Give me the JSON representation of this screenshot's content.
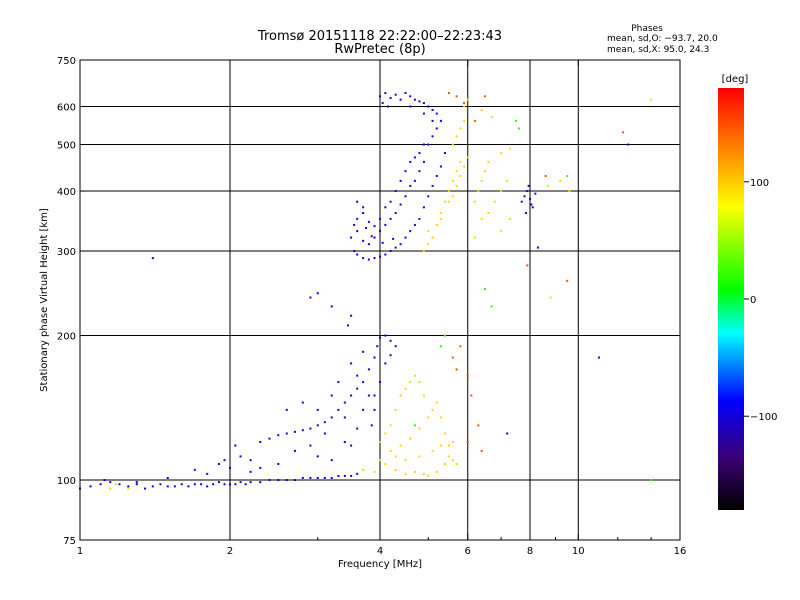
{
  "chart_data": {
    "type": "scatter",
    "title": "Tromsø 20151118 22:22:00–22:23:43",
    "subtitle": "RwPretec (8p)",
    "xlabel": "Frequency [MHz]",
    "ylabel": "Stationary phase Virtual Height [km]",
    "x_scale": "log",
    "y_scale": "log",
    "xlim": [
      1,
      16
    ],
    "ylim": [
      75,
      750
    ],
    "x_ticks": [
      1,
      2,
      4,
      6,
      8,
      10,
      16
    ],
    "x_tick_labels": [
      "1",
      "2",
      "4",
      "6",
      "8",
      "10",
      "16"
    ],
    "x_grid": [
      2,
      4,
      6,
      8,
      10
    ],
    "y_ticks": [
      75,
      100,
      200,
      300,
      400,
      500,
      600,
      750
    ],
    "y_tick_labels": [
      "75",
      "100",
      "200",
      "300",
      "400",
      "500",
      "600",
      "750"
    ],
    "y_grid": [
      100,
      200,
      300,
      400,
      500,
      600
    ],
    "grid": true,
    "legend": {
      "title": "Phases",
      "lines": [
        "mean, sd,O: −93.7, 20.0",
        "mean, sd,X:  95.0, 24.3"
      ],
      "placement": "top-right"
    },
    "colorbar": {
      "label": "[deg]",
      "min": -180,
      "max": 180,
      "ticks": [
        100,
        0,
        -100
      ],
      "tick_labels": [
        "100",
        "0",
        "−100"
      ]
    },
    "series": [
      {
        "mode": "O",
        "color_deg": -100,
        "points": [
          [
            1.0,
            96
          ],
          [
            1.05,
            97
          ],
          [
            1.1,
            98
          ],
          [
            1.12,
            100
          ],
          [
            1.15,
            99
          ],
          [
            1.2,
            98
          ],
          [
            1.25,
            97
          ],
          [
            1.3,
            98
          ],
          [
            1.35,
            96
          ],
          [
            1.4,
            97
          ],
          [
            1.45,
            98
          ],
          [
            1.5,
            97
          ],
          [
            1.55,
            97
          ],
          [
            1.6,
            98
          ],
          [
            1.65,
            97
          ],
          [
            1.7,
            98
          ],
          [
            1.75,
            98
          ],
          [
            1.8,
            97
          ],
          [
            1.85,
            98
          ],
          [
            1.9,
            99
          ],
          [
            1.95,
            98
          ],
          [
            2.0,
            98
          ],
          [
            2.05,
            98
          ],
          [
            2.1,
            99
          ],
          [
            2.15,
            98
          ],
          [
            2.2,
            99
          ],
          [
            2.3,
            99
          ],
          [
            2.4,
            100
          ],
          [
            2.5,
            100
          ],
          [
            2.6,
            100
          ],
          [
            2.7,
            100
          ],
          [
            2.8,
            101
          ],
          [
            2.9,
            101
          ],
          [
            3.0,
            101
          ],
          [
            3.1,
            101
          ],
          [
            3.2,
            101
          ],
          [
            3.3,
            102
          ],
          [
            3.4,
            102
          ],
          [
            3.5,
            102
          ],
          [
            3.6,
            103
          ],
          [
            1.3,
            99
          ],
          [
            1.5,
            101
          ],
          [
            1.7,
            105
          ],
          [
            1.8,
            103
          ],
          [
            1.9,
            108
          ],
          [
            1.95,
            110
          ],
          [
            2.0,
            106
          ],
          [
            2.1,
            112
          ],
          [
            2.05,
            118
          ],
          [
            2.2,
            110
          ],
          [
            2.3,
            120
          ],
          [
            2.4,
            122
          ],
          [
            2.5,
            124
          ],
          [
            2.6,
            125
          ],
          [
            2.7,
            126
          ],
          [
            2.8,
            127
          ],
          [
            2.9,
            128
          ],
          [
            3.0,
            130
          ],
          [
            3.1,
            132
          ],
          [
            3.2,
            135
          ],
          [
            3.3,
            140
          ],
          [
            3.4,
            145
          ],
          [
            3.5,
            150
          ],
          [
            3.6,
            155
          ],
          [
            3.7,
            160
          ],
          [
            3.8,
            170
          ],
          [
            3.9,
            180
          ],
          [
            3.95,
            190
          ],
          [
            4.0,
            198
          ],
          [
            4.1,
            200
          ],
          [
            4.2,
            195
          ],
          [
            4.3,
            190
          ],
          [
            3.5,
            175
          ],
          [
            3.6,
            165
          ],
          [
            3.7,
            185
          ],
          [
            3.8,
            150
          ],
          [
            3.4,
            135
          ],
          [
            3.3,
            160
          ],
          [
            3.2,
            150
          ],
          [
            3.0,
            140
          ],
          [
            2.8,
            145
          ],
          [
            2.6,
            140
          ],
          [
            2.9,
            118
          ],
          [
            3.1,
            125
          ],
          [
            3.4,
            120
          ],
          [
            3.6,
            128
          ],
          [
            3.9,
            140
          ],
          [
            4.0,
            160
          ],
          [
            4.1,
            175
          ],
          [
            4.2,
            182
          ],
          [
            3.9,
            150
          ],
          [
            3.7,
            140
          ],
          [
            3.85,
            130
          ],
          [
            3.5,
            118
          ],
          [
            3.2,
            110
          ],
          [
            3.0,
            112
          ],
          [
            2.7,
            115
          ],
          [
            2.5,
            108
          ],
          [
            2.3,
            106
          ],
          [
            2.2,
            104
          ],
          [
            3.55,
            300
          ],
          [
            3.6,
            295
          ],
          [
            3.7,
            290
          ],
          [
            3.8,
            288
          ],
          [
            3.9,
            290
          ],
          [
            4.0,
            292
          ],
          [
            4.1,
            295
          ],
          [
            4.2,
            300
          ],
          [
            4.3,
            305
          ],
          [
            4.4,
            310
          ],
          [
            4.5,
            320
          ],
          [
            4.6,
            330
          ],
          [
            4.7,
            340
          ],
          [
            4.8,
            350
          ],
          [
            4.9,
            370
          ],
          [
            5.0,
            390
          ],
          [
            5.1,
            410
          ],
          [
            5.2,
            430
          ],
          [
            5.3,
            450
          ],
          [
            5.4,
            480
          ],
          [
            3.5,
            320
          ],
          [
            3.55,
            340
          ],
          [
            3.6,
            330
          ],
          [
            3.7,
            315
          ],
          [
            3.8,
            310
          ],
          [
            3.9,
            320
          ],
          [
            4.0,
            330
          ],
          [
            4.1,
            340
          ],
          [
            4.2,
            350
          ],
          [
            4.3,
            360
          ],
          [
            4.4,
            375
          ],
          [
            4.5,
            390
          ],
          [
            4.6,
            410
          ],
          [
            4.7,
            420
          ],
          [
            4.8,
            440
          ],
          [
            4.9,
            460
          ],
          [
            5.0,
            500
          ],
          [
            5.1,
            520
          ],
          [
            5.2,
            540
          ],
          [
            5.3,
            560
          ],
          [
            3.6,
            350
          ],
          [
            3.7,
            360
          ],
          [
            3.8,
            345
          ],
          [
            3.9,
            338
          ],
          [
            4.0,
            350
          ],
          [
            4.1,
            370
          ],
          [
            4.2,
            380
          ],
          [
            4.3,
            400
          ],
          [
            4.4,
            420
          ],
          [
            4.5,
            440
          ],
          [
            4.6,
            460
          ],
          [
            4.7,
            470
          ],
          [
            4.8,
            480
          ],
          [
            4.9,
            500
          ],
          [
            3.6,
            380
          ],
          [
            3.7,
            370
          ],
          [
            3.75,
            335
          ],
          [
            3.85,
            322
          ],
          [
            4.05,
            312
          ],
          [
            4.25,
            318
          ],
          [
            4.0,
            630
          ],
          [
            4.1,
            640
          ],
          [
            4.2,
            625
          ],
          [
            4.3,
            635
          ],
          [
            4.4,
            620
          ],
          [
            4.5,
            640
          ],
          [
            4.6,
            630
          ],
          [
            4.7,
            620
          ],
          [
            4.8,
            615
          ],
          [
            4.9,
            610
          ],
          [
            5.0,
            600
          ],
          [
            5.1,
            590
          ],
          [
            5.2,
            580
          ],
          [
            4.05,
            610
          ],
          [
            4.15,
            600
          ],
          [
            4.6,
            600
          ],
          [
            4.9,
            580
          ],
          [
            5.1,
            560
          ],
          [
            7.7,
            380
          ],
          [
            7.8,
            390
          ],
          [
            7.9,
            400
          ],
          [
            8.0,
            385
          ],
          [
            8.1,
            370
          ],
          [
            7.85,
            360
          ],
          [
            8.2,
            395
          ],
          [
            7.95,
            410
          ],
          [
            8.05,
            375
          ],
          [
            1.4,
            290
          ],
          [
            2.9,
            240
          ],
          [
            3.0,
            245
          ],
          [
            3.2,
            230
          ],
          [
            3.45,
            210
          ],
          [
            3.5,
            220
          ],
          [
            8.3,
            305
          ],
          [
            11.0,
            180
          ],
          [
            12.6,
            500
          ],
          [
            7.2,
            125
          ]
        ]
      },
      {
        "mode": "X",
        "color_deg": 95,
        "points": [
          [
            4.0,
            120
          ],
          [
            4.1,
            125
          ],
          [
            4.2,
            130
          ],
          [
            4.3,
            140
          ],
          [
            4.4,
            150
          ],
          [
            4.5,
            155
          ],
          [
            4.6,
            160
          ],
          [
            4.7,
            165
          ],
          [
            4.8,
            160
          ],
          [
            4.9,
            150
          ],
          [
            4.2,
            115
          ],
          [
            4.4,
            118
          ],
          [
            4.6,
            122
          ],
          [
            4.8,
            128
          ],
          [
            5.0,
            135
          ],
          [
            5.1,
            140
          ],
          [
            5.2,
            145
          ],
          [
            5.3,
            135
          ],
          [
            5.4,
            125
          ],
          [
            5.5,
            118
          ],
          [
            4.3,
            105
          ],
          [
            4.5,
            103
          ],
          [
            4.7,
            104
          ],
          [
            4.9,
            103
          ],
          [
            5.0,
            102
          ],
          [
            5.2,
            104
          ],
          [
            5.4,
            108
          ],
          [
            5.5,
            112
          ],
          [
            5.6,
            110
          ],
          [
            5.7,
            108
          ],
          [
            4.0,
            110
          ],
          [
            4.1,
            108
          ],
          [
            4.3,
            112
          ],
          [
            4.5,
            110
          ],
          [
            4.8,
            112
          ],
          [
            5.1,
            115
          ],
          [
            5.3,
            118
          ],
          [
            5.6,
            120
          ],
          [
            3.7,
            105
          ],
          [
            3.9,
            104
          ],
          [
            1.15,
            96
          ],
          [
            1.18,
            98
          ],
          [
            1.25,
            96
          ],
          [
            4.9,
            300
          ],
          [
            5.0,
            310
          ],
          [
            5.1,
            320
          ],
          [
            5.2,
            340
          ],
          [
            5.3,
            360
          ],
          [
            5.4,
            380
          ],
          [
            5.5,
            400
          ],
          [
            5.6,
            420
          ],
          [
            5.7,
            440
          ],
          [
            5.8,
            460
          ],
          [
            5.5,
            380
          ],
          [
            5.6,
            390
          ],
          [
            5.7,
            410
          ],
          [
            5.8,
            430
          ],
          [
            5.9,
            450
          ],
          [
            6.0,
            470
          ],
          [
            5.6,
            500
          ],
          [
            5.7,
            520
          ],
          [
            5.8,
            540
          ],
          [
            5.9,
            560
          ],
          [
            6.2,
            380
          ],
          [
            6.3,
            400
          ],
          [
            6.4,
            420
          ],
          [
            6.5,
            440
          ],
          [
            6.6,
            460
          ],
          [
            6.4,
            350
          ],
          [
            6.6,
            360
          ],
          [
            6.8,
            380
          ],
          [
            7.0,
            400
          ],
          [
            7.2,
            420
          ],
          [
            7.0,
            330
          ],
          [
            7.3,
            350
          ],
          [
            6.2,
            320
          ],
          [
            5.9,
            600
          ],
          [
            6.0,
            620
          ],
          [
            6.4,
            590
          ],
          [
            6.7,
            570
          ],
          [
            7.0,
            480
          ],
          [
            7.3,
            490
          ],
          [
            8.7,
            410
          ],
          [
            9.2,
            420
          ],
          [
            9.6,
            400
          ],
          [
            14.0,
            620
          ],
          [
            8.8,
            240
          ],
          [
            5.0,
            330
          ],
          [
            5.3,
            350
          ]
        ]
      },
      {
        "mode": "O",
        "color_deg": 150,
        "points": [
          [
            5.5,
            640
          ],
          [
            5.7,
            630
          ],
          [
            5.9,
            610
          ],
          [
            6.5,
            630
          ],
          [
            6.2,
            560
          ],
          [
            5.6,
            180
          ],
          [
            5.7,
            170
          ],
          [
            6.0,
            165
          ],
          [
            6.1,
            150
          ],
          [
            5.8,
            190
          ],
          [
            6.3,
            130
          ],
          [
            6.0,
            120
          ],
          [
            6.4,
            115
          ],
          [
            12.3,
            530
          ],
          [
            8.6,
            430
          ],
          [
            9.5,
            260
          ],
          [
            7.9,
            280
          ]
        ]
      },
      {
        "mode": "X",
        "color_deg": 20,
        "points": [
          [
            5.4,
            200
          ],
          [
            5.3,
            190
          ],
          [
            7.5,
            560
          ],
          [
            7.6,
            540
          ],
          [
            6.5,
            250
          ],
          [
            6.7,
            230
          ],
          [
            9.5,
            430
          ],
          [
            14.0,
            100
          ],
          [
            4.7,
            130
          ]
        ]
      }
    ]
  }
}
